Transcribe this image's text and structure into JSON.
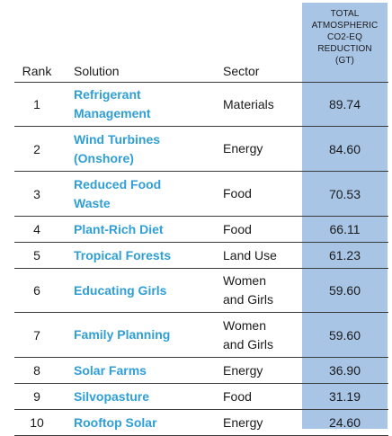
{
  "headers": {
    "rank": "Rank",
    "solution": "Solution",
    "sector": "Sector",
    "value_lines": [
      "TOTAL",
      "ATMOSPHERIC",
      "CO2-EQ",
      "REDUCTION",
      "(GT)"
    ]
  },
  "rows": [
    {
      "rank": "1",
      "solution_lines": [
        "Refrigerant",
        "Management"
      ],
      "sector_lines": [
        "Materials"
      ],
      "value": "89.74"
    },
    {
      "rank": "2",
      "solution_lines": [
        "Wind Turbines",
        "(Onshore)"
      ],
      "sector_lines": [
        "Energy"
      ],
      "value": "84.60"
    },
    {
      "rank": "3",
      "solution_lines": [
        "Reduced Food",
        "Waste"
      ],
      "sector_lines": [
        "Food"
      ],
      "value": "70.53"
    },
    {
      "rank": "4",
      "solution_lines": [
        "Plant-Rich Diet"
      ],
      "sector_lines": [
        "Food"
      ],
      "value": "66.11"
    },
    {
      "rank": "5",
      "solution_lines": [
        "Tropical Forests"
      ],
      "sector_lines": [
        "Land Use"
      ],
      "value": "61.23"
    },
    {
      "rank": "6",
      "solution_lines": [
        "Educating Girls"
      ],
      "sector_lines": [
        "Women",
        "and Girls"
      ],
      "value": "59.60"
    },
    {
      "rank": "7",
      "solution_lines": [
        "Family Planning"
      ],
      "sector_lines": [
        "Women",
        "and Girls"
      ],
      "value": "59.60"
    },
    {
      "rank": "8",
      "solution_lines": [
        "Solar Farms"
      ],
      "sector_lines": [
        "Energy"
      ],
      "value": "36.90"
    },
    {
      "rank": "9",
      "solution_lines": [
        "Silvopasture"
      ],
      "sector_lines": [
        "Food"
      ],
      "value": "31.19"
    },
    {
      "rank": "10",
      "solution_lines": [
        "Rooftop Solar"
      ],
      "sector_lines": [
        "Energy"
      ],
      "value": "24.60"
    }
  ],
  "colors": {
    "solution_text": "#2f9fd6",
    "highlight_column": "#a9c5e6",
    "rule": "#3a3a3a"
  }
}
